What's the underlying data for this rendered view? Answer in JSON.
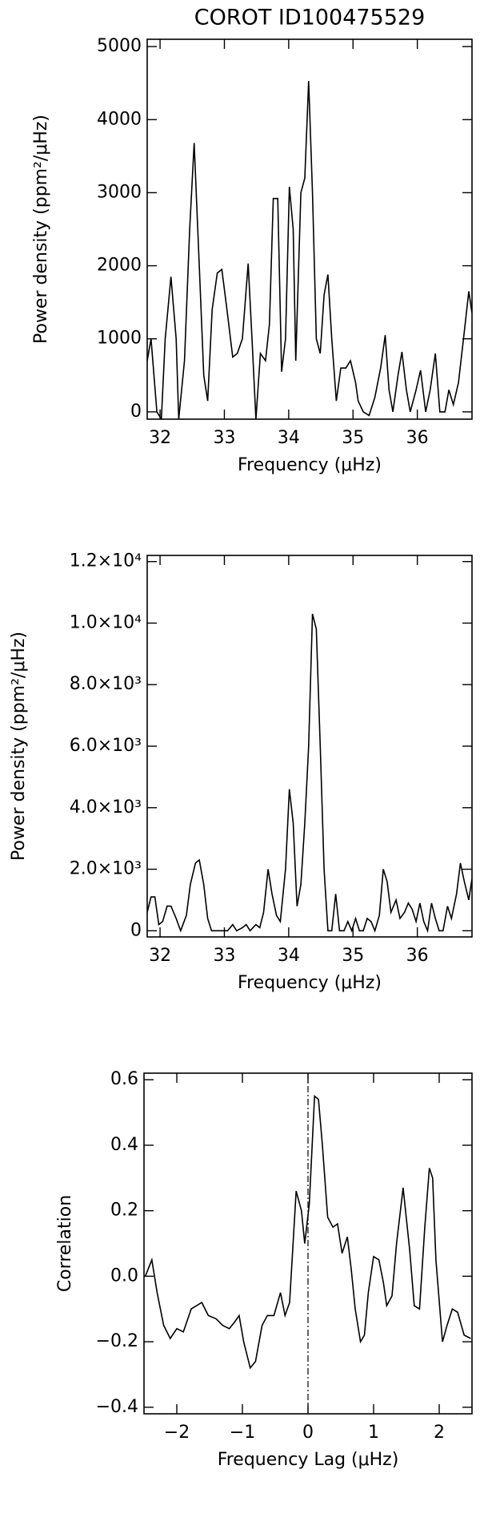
{
  "chart_data": [
    {
      "type": "line",
      "title": "COROT ID100475529",
      "xlabel": "Frequency (μHz)",
      "ylabel": "Power density (ppm²/μHz)",
      "color": "#000000",
      "xlim": [
        31.8,
        36.85
      ],
      "ylim": [
        -100,
        5100
      ],
      "xticks": [
        32,
        33,
        34,
        35,
        36
      ],
      "yticks": [
        0,
        1000,
        2000,
        3000,
        4000,
        5000
      ],
      "x": [
        31.8,
        31.86,
        31.95,
        32.02,
        32.08,
        32.17,
        32.25,
        32.29,
        32.38,
        32.46,
        32.53,
        32.61,
        32.68,
        32.74,
        32.81,
        32.89,
        32.96,
        33.04,
        33.13,
        33.2,
        33.28,
        33.37,
        33.43,
        33.49,
        33.56,
        33.64,
        33.7,
        33.76,
        33.83,
        33.89,
        33.95,
        34.01,
        34.07,
        34.11,
        34.19,
        34.25,
        34.31,
        34.37,
        34.43,
        34.49,
        34.55,
        34.61,
        34.67,
        34.74,
        34.81,
        34.89,
        34.96,
        35.04,
        35.08,
        35.16,
        35.25,
        35.34,
        35.43,
        35.5,
        35.56,
        35.62,
        35.7,
        35.76,
        35.83,
        35.89,
        35.98,
        36.05,
        36.13,
        36.2,
        36.28,
        36.35,
        36.43,
        36.49,
        36.56,
        36.64,
        36.73,
        36.8,
        36.85
      ],
      "values": [
        700,
        1000,
        0,
        -100,
        1000,
        1850,
        1000,
        -100,
        700,
        2500,
        3680,
        2000,
        500,
        150,
        1400,
        1900,
        1950,
        1400,
        750,
        800,
        1000,
        2030,
        1000,
        -100,
        800,
        700,
        1200,
        2920,
        2920,
        550,
        1000,
        3080,
        2500,
        700,
        3000,
        3200,
        4530,
        3000,
        1000,
        800,
        1600,
        1880,
        1000,
        150,
        600,
        600,
        700,
        400,
        150,
        0,
        -50,
        200,
        600,
        1050,
        300,
        0,
        500,
        820,
        300,
        0,
        300,
        570,
        0,
        300,
        800,
        0,
        0,
        300,
        100,
        400,
        1100,
        1650,
        1350
      ]
    },
    {
      "type": "line",
      "xlabel": "Frequency (μHz)",
      "ylabel": "Power density (ppm²/μHz)",
      "color": "#000000",
      "xlim": [
        31.8,
        36.85
      ],
      "ylim": [
        -200,
        12200
      ],
      "xticks": [
        32,
        33,
        34,
        35,
        36
      ],
      "yticks": [
        0,
        {
          "value": 2000,
          "label": "2.0×10³"
        },
        {
          "value": 4000,
          "label": "4.0×10³"
        },
        {
          "value": 6000,
          "label": "6.0×10³"
        },
        {
          "value": 8000,
          "label": "8.0×10³"
        },
        {
          "value": 10000,
          "label": "1.0×10⁴"
        },
        {
          "value": 12000,
          "label": "1.2×10⁴"
        }
      ],
      "x": [
        31.8,
        31.86,
        31.92,
        31.98,
        32.04,
        32.11,
        32.17,
        32.25,
        32.32,
        32.41,
        32.47,
        32.55,
        32.61,
        32.68,
        32.74,
        32.8,
        32.87,
        32.98,
        33.05,
        33.13,
        33.19,
        33.28,
        33.34,
        33.4,
        33.49,
        33.55,
        33.61,
        33.68,
        33.74,
        33.81,
        33.87,
        33.95,
        34.01,
        34.07,
        34.13,
        34.19,
        34.25,
        34.31,
        34.37,
        34.43,
        34.49,
        34.55,
        34.61,
        34.67,
        34.73,
        34.79,
        34.86,
        34.92,
        34.98,
        35.04,
        35.1,
        35.16,
        35.22,
        35.28,
        35.34,
        35.41,
        35.47,
        35.53,
        35.59,
        35.67,
        35.73,
        35.8,
        35.86,
        35.92,
        35.98,
        36.04,
        36.1,
        36.16,
        36.22,
        36.28,
        36.34,
        36.4,
        36.47,
        36.53,
        36.61,
        36.67,
        36.73,
        36.8,
        36.85
      ],
      "values": [
        600,
        1100,
        1100,
        200,
        300,
        800,
        800,
        400,
        0,
        500,
        1500,
        2200,
        2300,
        1500,
        400,
        0,
        0,
        0,
        0,
        200,
        0,
        100,
        200,
        0,
        200,
        100,
        600,
        2000,
        1200,
        500,
        300,
        2000,
        4600,
        3500,
        800,
        1500,
        3500,
        6000,
        10300,
        9800,
        6000,
        2000,
        0,
        0,
        1200,
        0,
        0,
        300,
        0,
        400,
        0,
        0,
        400,
        300,
        0,
        500,
        2000,
        1600,
        600,
        1000,
        400,
        600,
        900,
        700,
        300,
        900,
        300,
        0,
        900,
        400,
        0,
        0,
        800,
        400,
        1200,
        2200,
        1600,
        1000,
        1700
      ]
    },
    {
      "type": "line",
      "xlabel": "Frequency Lag (μHz)",
      "ylabel": "Correlation",
      "color": "#000000",
      "xlim": [
        -2.5,
        2.5
      ],
      "ylim": [
        -0.42,
        0.62
      ],
      "xticks": [
        {
          "value": -2,
          "label": "−2"
        },
        {
          "value": -1,
          "label": "−1"
        },
        0,
        1,
        2
      ],
      "yticks": [
        {
          "value": -0.4,
          "label": "−0.4"
        },
        {
          "value": -0.2,
          "label": "−0.2"
        },
        {
          "value": 0,
          "label": "0.0"
        },
        0.2,
        0.4,
        0.6
      ],
      "vline": 0,
      "vline_style": "dash-dot",
      "x": [
        -2.48,
        -2.38,
        -2.3,
        -2.2,
        -2.1,
        -2.0,
        -1.9,
        -1.78,
        -1.62,
        -1.52,
        -1.4,
        -1.3,
        -1.2,
        -1.12,
        -1.05,
        -0.98,
        -0.88,
        -0.8,
        -0.7,
        -0.62,
        -0.52,
        -0.42,
        -0.35,
        -0.28,
        -0.18,
        -0.1,
        -0.05,
        0.02,
        0.1,
        0.16,
        0.22,
        0.3,
        0.38,
        0.45,
        0.52,
        0.6,
        0.66,
        0.72,
        0.8,
        0.86,
        0.92,
        1.0,
        1.08,
        1.15,
        1.2,
        1.28,
        1.35,
        1.45,
        1.55,
        1.62,
        1.7,
        1.78,
        1.85,
        1.9,
        1.95,
        2.05,
        2.12,
        2.2,
        2.28,
        2.38,
        2.48
      ],
      "values": [
        0.0,
        0.05,
        -0.05,
        -0.15,
        -0.19,
        -0.16,
        -0.17,
        -0.1,
        -0.08,
        -0.12,
        -0.13,
        -0.15,
        -0.16,
        -0.14,
        -0.12,
        -0.2,
        -0.28,
        -0.26,
        -0.15,
        -0.12,
        -0.12,
        -0.05,
        -0.12,
        -0.08,
        0.26,
        0.2,
        0.1,
        0.22,
        0.55,
        0.54,
        0.4,
        0.18,
        0.15,
        0.16,
        0.07,
        0.12,
        0.02,
        -0.1,
        -0.2,
        -0.18,
        -0.05,
        0.06,
        0.05,
        -0.02,
        -0.09,
        -0.06,
        0.1,
        0.27,
        0.08,
        -0.09,
        -0.1,
        0.15,
        0.33,
        0.3,
        0.05,
        -0.2,
        -0.15,
        -0.1,
        -0.11,
        -0.18,
        -0.19
      ]
    }
  ]
}
